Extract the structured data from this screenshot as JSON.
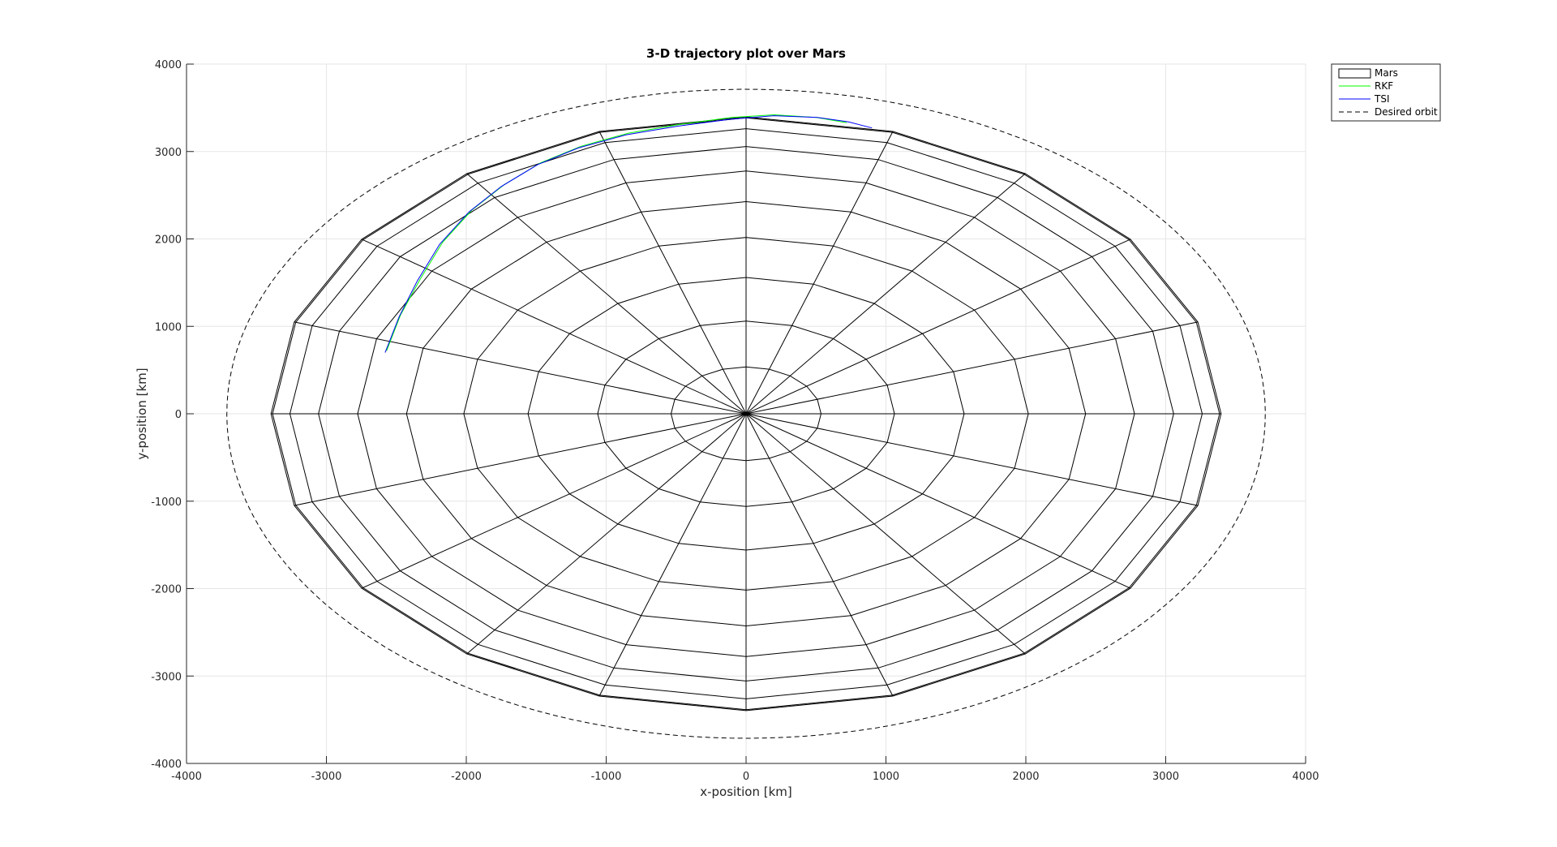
{
  "figure": {
    "title": "3-D trajectory plot over Mars",
    "xlabel": "x-position [km]",
    "ylabel": "y-position [km]"
  },
  "legend": {
    "placement": "top-right",
    "items": [
      {
        "label": "Mars",
        "style": "patch"
      },
      {
        "label": "RKF",
        "style": "line",
        "color": "#00ff00"
      },
      {
        "label": "TSI",
        "style": "line",
        "color": "#0000ff"
      },
      {
        "label": "Desired orbit",
        "style": "dashed",
        "color": "#000000"
      }
    ]
  },
  "colors": {
    "grid": "#e6e6e6",
    "axis": "#262626",
    "mars_mesh": "#000000",
    "rkf": "#00ff00",
    "tsi": "#0000ff",
    "desired_orbit": "#000000"
  },
  "chart_data": {
    "type": "line",
    "title": "3-D trajectory plot over Mars",
    "xlabel": "x-position [km]",
    "ylabel": "y-position [km]",
    "xlim": [
      -4000,
      4000
    ],
    "ylim": [
      -4000,
      4000
    ],
    "xticks": [
      -4000,
      -3000,
      -2000,
      -1000,
      0,
      1000,
      2000,
      3000,
      4000
    ],
    "yticks": [
      -4000,
      -3000,
      -2000,
      -1000,
      0,
      1000,
      2000,
      3000,
      4000
    ],
    "grid": true,
    "legend_position": "top-right",
    "mars": {
      "radius_km": 3396,
      "sectors": 20,
      "mesh_radii_km": [
        0,
        536,
        1061,
        1559,
        2018,
        2427,
        2777,
        3057,
        3261,
        3385,
        3396
      ]
    },
    "series": [
      {
        "name": "RKF",
        "color": "#00ff00",
        "x": [
          -2570,
          -2470,
          -2330,
          -2170,
          -1960,
          -1730,
          -1470,
          -1180,
          -840,
          -470,
          -100,
          200,
          500,
          720
        ],
        "y": [
          720,
          1130,
          1540,
          1960,
          2330,
          2620,
          2870,
          3060,
          3210,
          3310,
          3390,
          3420,
          3390,
          3330
        ]
      },
      {
        "name": "TSI",
        "color": "#0000ff",
        "x": [
          -2580,
          -2480,
          -2350,
          -2190,
          -1980,
          -1750,
          -1490,
          -1200,
          -860,
          -490,
          -110,
          200,
          510,
          730,
          900
        ],
        "y": [
          700,
          1110,
          1520,
          1940,
          2310,
          2600,
          2850,
          3040,
          3190,
          3290,
          3370,
          3410,
          3390,
          3340,
          3270
        ]
      },
      {
        "name": "Desired orbit",
        "color": "#000000",
        "style": "dashed",
        "ellipse": {
          "a": 3712,
          "b": 3712,
          "tilt_deg": -17.7,
          "cx": 0,
          "cy": 0
        }
      }
    ]
  }
}
